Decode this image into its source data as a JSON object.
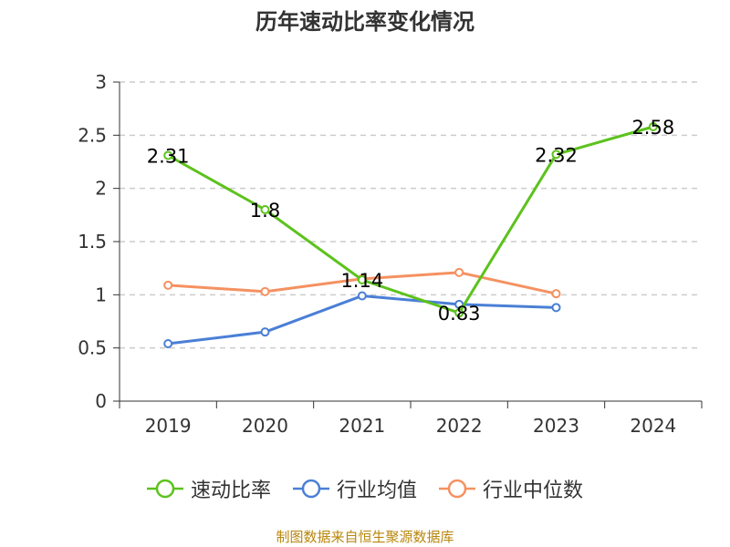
{
  "chart_data": {
    "type": "line",
    "title": "历年速动比率变化情况",
    "categories": [
      "2019",
      "2020",
      "2021",
      "2022",
      "2023",
      "2024"
    ],
    "ylim": [
      0,
      3
    ],
    "yticks": [
      0,
      0.5,
      1,
      1.5,
      2,
      2.5,
      3
    ],
    "ytick_labels": [
      "0",
      "0.5",
      "1",
      "1.5",
      "2",
      "2.5",
      "3"
    ],
    "grid": true,
    "legend_position": "bottom",
    "series": [
      {
        "name": "速动比率",
        "color": "#5cc21c",
        "values": [
          2.31,
          1.8,
          1.14,
          0.83,
          2.32,
          2.58
        ],
        "labels": [
          "2.31",
          "1.8",
          "1.14",
          "0.83",
          "2.32",
          "2.58"
        ]
      },
      {
        "name": "行业均值",
        "color": "#4a7fd6",
        "values": [
          0.54,
          0.65,
          0.99,
          0.91,
          0.88,
          null
        ]
      },
      {
        "name": "行业中位数",
        "color": "#f59160",
        "values": [
          1.09,
          1.03,
          1.15,
          1.21,
          1.01,
          null
        ]
      }
    ]
  },
  "source_text": "制图数据来自恒生聚源数据库"
}
